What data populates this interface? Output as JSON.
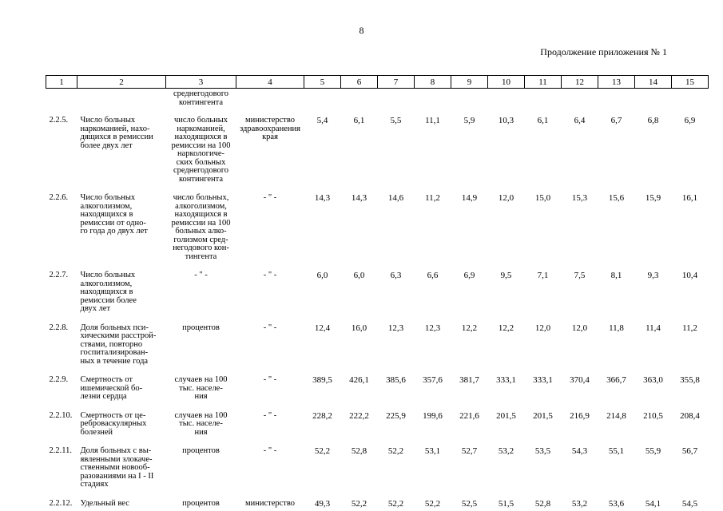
{
  "page": {
    "number": "8",
    "continuation": "Продолжение приложения № 1"
  },
  "table": {
    "header_cols": [
      "1",
      "2",
      "3",
      "4",
      "5",
      "6",
      "7",
      "8",
      "9",
      "10",
      "11",
      "12",
      "13",
      "14",
      "15"
    ],
    "rows": [
      {
        "partial": true,
        "num": "",
        "name": "",
        "unit": "среднегодового\nконтингента",
        "source": "",
        "values": []
      },
      {
        "num": "2.2.5.",
        "name": "Число больных\nнаркоманией, нахо-\nдящихся в ремиссии\nболее двух лет",
        "unit": "число больных\nнаркоманией,\nнаходящихся в\nремиссии на 100\nнаркологиче-\nских больных\nсреднегодового\nконтингента",
        "source": "министерство\nздравоохранения\nкрая",
        "values": [
          "5,4",
          "6,1",
          "5,5",
          "11,1",
          "5,9",
          "10,3",
          "6,1",
          "6,4",
          "6,7",
          "6,8",
          "6,9"
        ]
      },
      {
        "num": "2.2.6.",
        "name": "Число больных\nалкоголизмом,\nнаходящихся в\nремиссии от одно-\nго года до двух лет",
        "unit": "число больных,\nалкоголизмом,\nнаходящихся в\nремиссии на 100\nбольных алко-\nголизмом сред-\nнегодового кон-\nтингента",
        "source": "- \" -",
        "values": [
          "14,3",
          "14,3",
          "14,6",
          "11,2",
          "14,9",
          "12,0",
          "15,0",
          "15,3",
          "15,6",
          "15,9",
          "16,1"
        ]
      },
      {
        "num": "2.2.7.",
        "name": "Число больных\nалкоголизмом,\nнаходящихся в\nремиссии более\nдвух лет",
        "unit": "- \" -",
        "source": "- \" -",
        "values": [
          "6,0",
          "6,0",
          "6,3",
          "6,6",
          "6,9",
          "9,5",
          "7,1",
          "7,5",
          "8,1",
          "9,3",
          "10,4"
        ]
      },
      {
        "num": "2.2.8.",
        "name": "Доля больных пси-\nхическими расстрой-\nствами, повторно\nгоспитализирован-\nных в течение года",
        "unit": "процентов",
        "source": "- \" -",
        "values": [
          "12,4",
          "16,0",
          "12,3",
          "12,3",
          "12,2",
          "12,2",
          "12,0",
          "12,0",
          "11,8",
          "11,4",
          "11,2"
        ]
      },
      {
        "num": "2.2.9.",
        "name": "Смертность от\nишемической бо-\nлезни сердца",
        "unit": "случаев на 100\nтыс. населе-\nния",
        "source": "- \" -",
        "values": [
          "389,5",
          "426,1",
          "385,6",
          "357,6",
          "381,7",
          "333,1",
          "333,1",
          "370,4",
          "366,7",
          "363,0",
          "355,8"
        ]
      },
      {
        "num": "2.2.10.",
        "name": "Смертность от це-\nреброваскулярных\nболезней",
        "unit": "случаев на 100\nтыс. населе-\nния",
        "source": "- \" -",
        "values": [
          "228,2",
          "222,2",
          "225,9",
          "199,6",
          "221,6",
          "201,5",
          "201,5",
          "216,9",
          "214,8",
          "210,5",
          "208,4"
        ]
      },
      {
        "num": "2.2.11.",
        "name": "Доля больных с вы-\nявленными злокаче-\nственными новооб-\nразованиями на I - II\nстадиях",
        "unit": "процентов",
        "source": "- \" -",
        "values": [
          "52,2",
          "52,8",
          "52,2",
          "53,1",
          "52,7",
          "53,2",
          "53,5",
          "54,3",
          "55,1",
          "55,9",
          "56,7"
        ]
      },
      {
        "num": "2.2.12.",
        "name": "Удельный вес",
        "unit": "процентов",
        "source": "министерство",
        "values": [
          "49,3",
          "52,2",
          "52,2",
          "52,2",
          "52,5",
          "51,5",
          "52,8",
          "53,2",
          "53,6",
          "54,1",
          "54,5"
        ]
      }
    ]
  }
}
